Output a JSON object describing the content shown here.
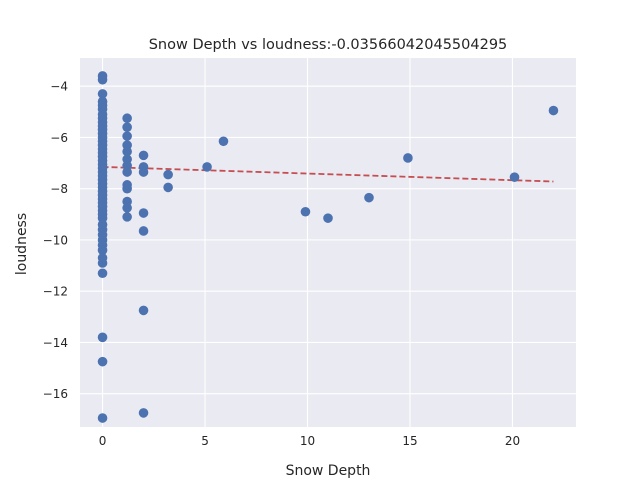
{
  "chart_data": {
    "type": "scatter",
    "title": "Snow Depth vs loudness:-0.03566042045504295",
    "xlabel": "Snow Depth",
    "ylabel": "loudness",
    "xlim": [
      -1.1,
      23.1
    ],
    "ylim": [
      -17.3,
      -2.9
    ],
    "xticks": [
      0,
      5,
      10,
      15,
      20
    ],
    "yticks": [
      -16,
      -14,
      -12,
      -10,
      -8,
      -6,
      -4
    ],
    "xtick_labels": [
      "0",
      "5",
      "10",
      "15",
      "20"
    ],
    "ytick_labels": [
      "−16",
      "−14",
      "−12",
      "−10",
      "−8",
      "−6",
      "−4"
    ],
    "grid": true,
    "colors": {
      "background": "#eaeaf2",
      "grid": "#ffffff",
      "points": "#4c72b0",
      "trend": "#c44e52"
    },
    "points": [
      {
        "x": 0,
        "y": -3.6
      },
      {
        "x": 0,
        "y": -3.75
      },
      {
        "x": 0,
        "y": -4.3
      },
      {
        "x": 0,
        "y": -4.6
      },
      {
        "x": 0,
        "y": -4.75
      },
      {
        "x": 0,
        "y": -4.9
      },
      {
        "x": 0,
        "y": -5.1
      },
      {
        "x": 0,
        "y": -5.25
      },
      {
        "x": 0,
        "y": -5.4
      },
      {
        "x": 0,
        "y": -5.55
      },
      {
        "x": 0,
        "y": -5.7
      },
      {
        "x": 0,
        "y": -5.85
      },
      {
        "x": 0,
        "y": -6.0
      },
      {
        "x": 0,
        "y": -6.15
      },
      {
        "x": 0,
        "y": -6.3
      },
      {
        "x": 0,
        "y": -6.45
      },
      {
        "x": 0,
        "y": -6.6
      },
      {
        "x": 0,
        "y": -6.75
      },
      {
        "x": 0,
        "y": -6.9
      },
      {
        "x": 0,
        "y": -7.05
      },
      {
        "x": 0,
        "y": -7.2
      },
      {
        "x": 0,
        "y": -7.35
      },
      {
        "x": 0,
        "y": -7.5
      },
      {
        "x": 0,
        "y": -7.65
      },
      {
        "x": 0,
        "y": -7.8
      },
      {
        "x": 0,
        "y": -7.95
      },
      {
        "x": 0,
        "y": -8.1
      },
      {
        "x": 0,
        "y": -8.25
      },
      {
        "x": 0,
        "y": -8.4
      },
      {
        "x": 0,
        "y": -8.55
      },
      {
        "x": 0,
        "y": -8.7
      },
      {
        "x": 0,
        "y": -8.85
      },
      {
        "x": 0,
        "y": -9.0
      },
      {
        "x": 0,
        "y": -9.15
      },
      {
        "x": 0,
        "y": -9.4
      },
      {
        "x": 0,
        "y": -9.6
      },
      {
        "x": 0,
        "y": -9.8
      },
      {
        "x": 0,
        "y": -10.0
      },
      {
        "x": 0,
        "y": -10.2
      },
      {
        "x": 0,
        "y": -10.4
      },
      {
        "x": 0,
        "y": -10.7
      },
      {
        "x": 0,
        "y": -10.9
      },
      {
        "x": 0,
        "y": -11.3
      },
      {
        "x": 0,
        "y": -13.8
      },
      {
        "x": 0,
        "y": -14.75
      },
      {
        "x": 0,
        "y": -16.95
      },
      {
        "x": 1.2,
        "y": -5.25
      },
      {
        "x": 1.2,
        "y": -5.6
      },
      {
        "x": 1.2,
        "y": -5.95
      },
      {
        "x": 1.2,
        "y": -6.3
      },
      {
        "x": 1.2,
        "y": -6.55
      },
      {
        "x": 1.2,
        "y": -6.85
      },
      {
        "x": 1.2,
        "y": -7.1
      },
      {
        "x": 1.2,
        "y": -7.35
      },
      {
        "x": 1.2,
        "y": -7.85
      },
      {
        "x": 1.2,
        "y": -8.0
      },
      {
        "x": 1.2,
        "y": -8.5
      },
      {
        "x": 1.2,
        "y": -8.75
      },
      {
        "x": 1.2,
        "y": -9.1
      },
      {
        "x": 2,
        "y": -6.7
      },
      {
        "x": 2,
        "y": -7.15
      },
      {
        "x": 2,
        "y": -7.35
      },
      {
        "x": 2,
        "y": -8.95
      },
      {
        "x": 2,
        "y": -9.65
      },
      {
        "x": 2,
        "y": -12.75
      },
      {
        "x": 2,
        "y": -16.75
      },
      {
        "x": 3.2,
        "y": -7.45
      },
      {
        "x": 3.2,
        "y": -7.95
      },
      {
        "x": 5.1,
        "y": -7.15
      },
      {
        "x": 5.9,
        "y": -6.15
      },
      {
        "x": 9.9,
        "y": -8.9
      },
      {
        "x": 11.0,
        "y": -9.15
      },
      {
        "x": 13.0,
        "y": -8.35
      },
      {
        "x": 14.9,
        "y": -6.8
      },
      {
        "x": 20.1,
        "y": -7.55
      },
      {
        "x": 22.0,
        "y": -4.95
      }
    ],
    "trend_line": {
      "x": [
        0,
        22.0
      ],
      "y": [
        -7.15,
        -7.72
      ]
    }
  }
}
